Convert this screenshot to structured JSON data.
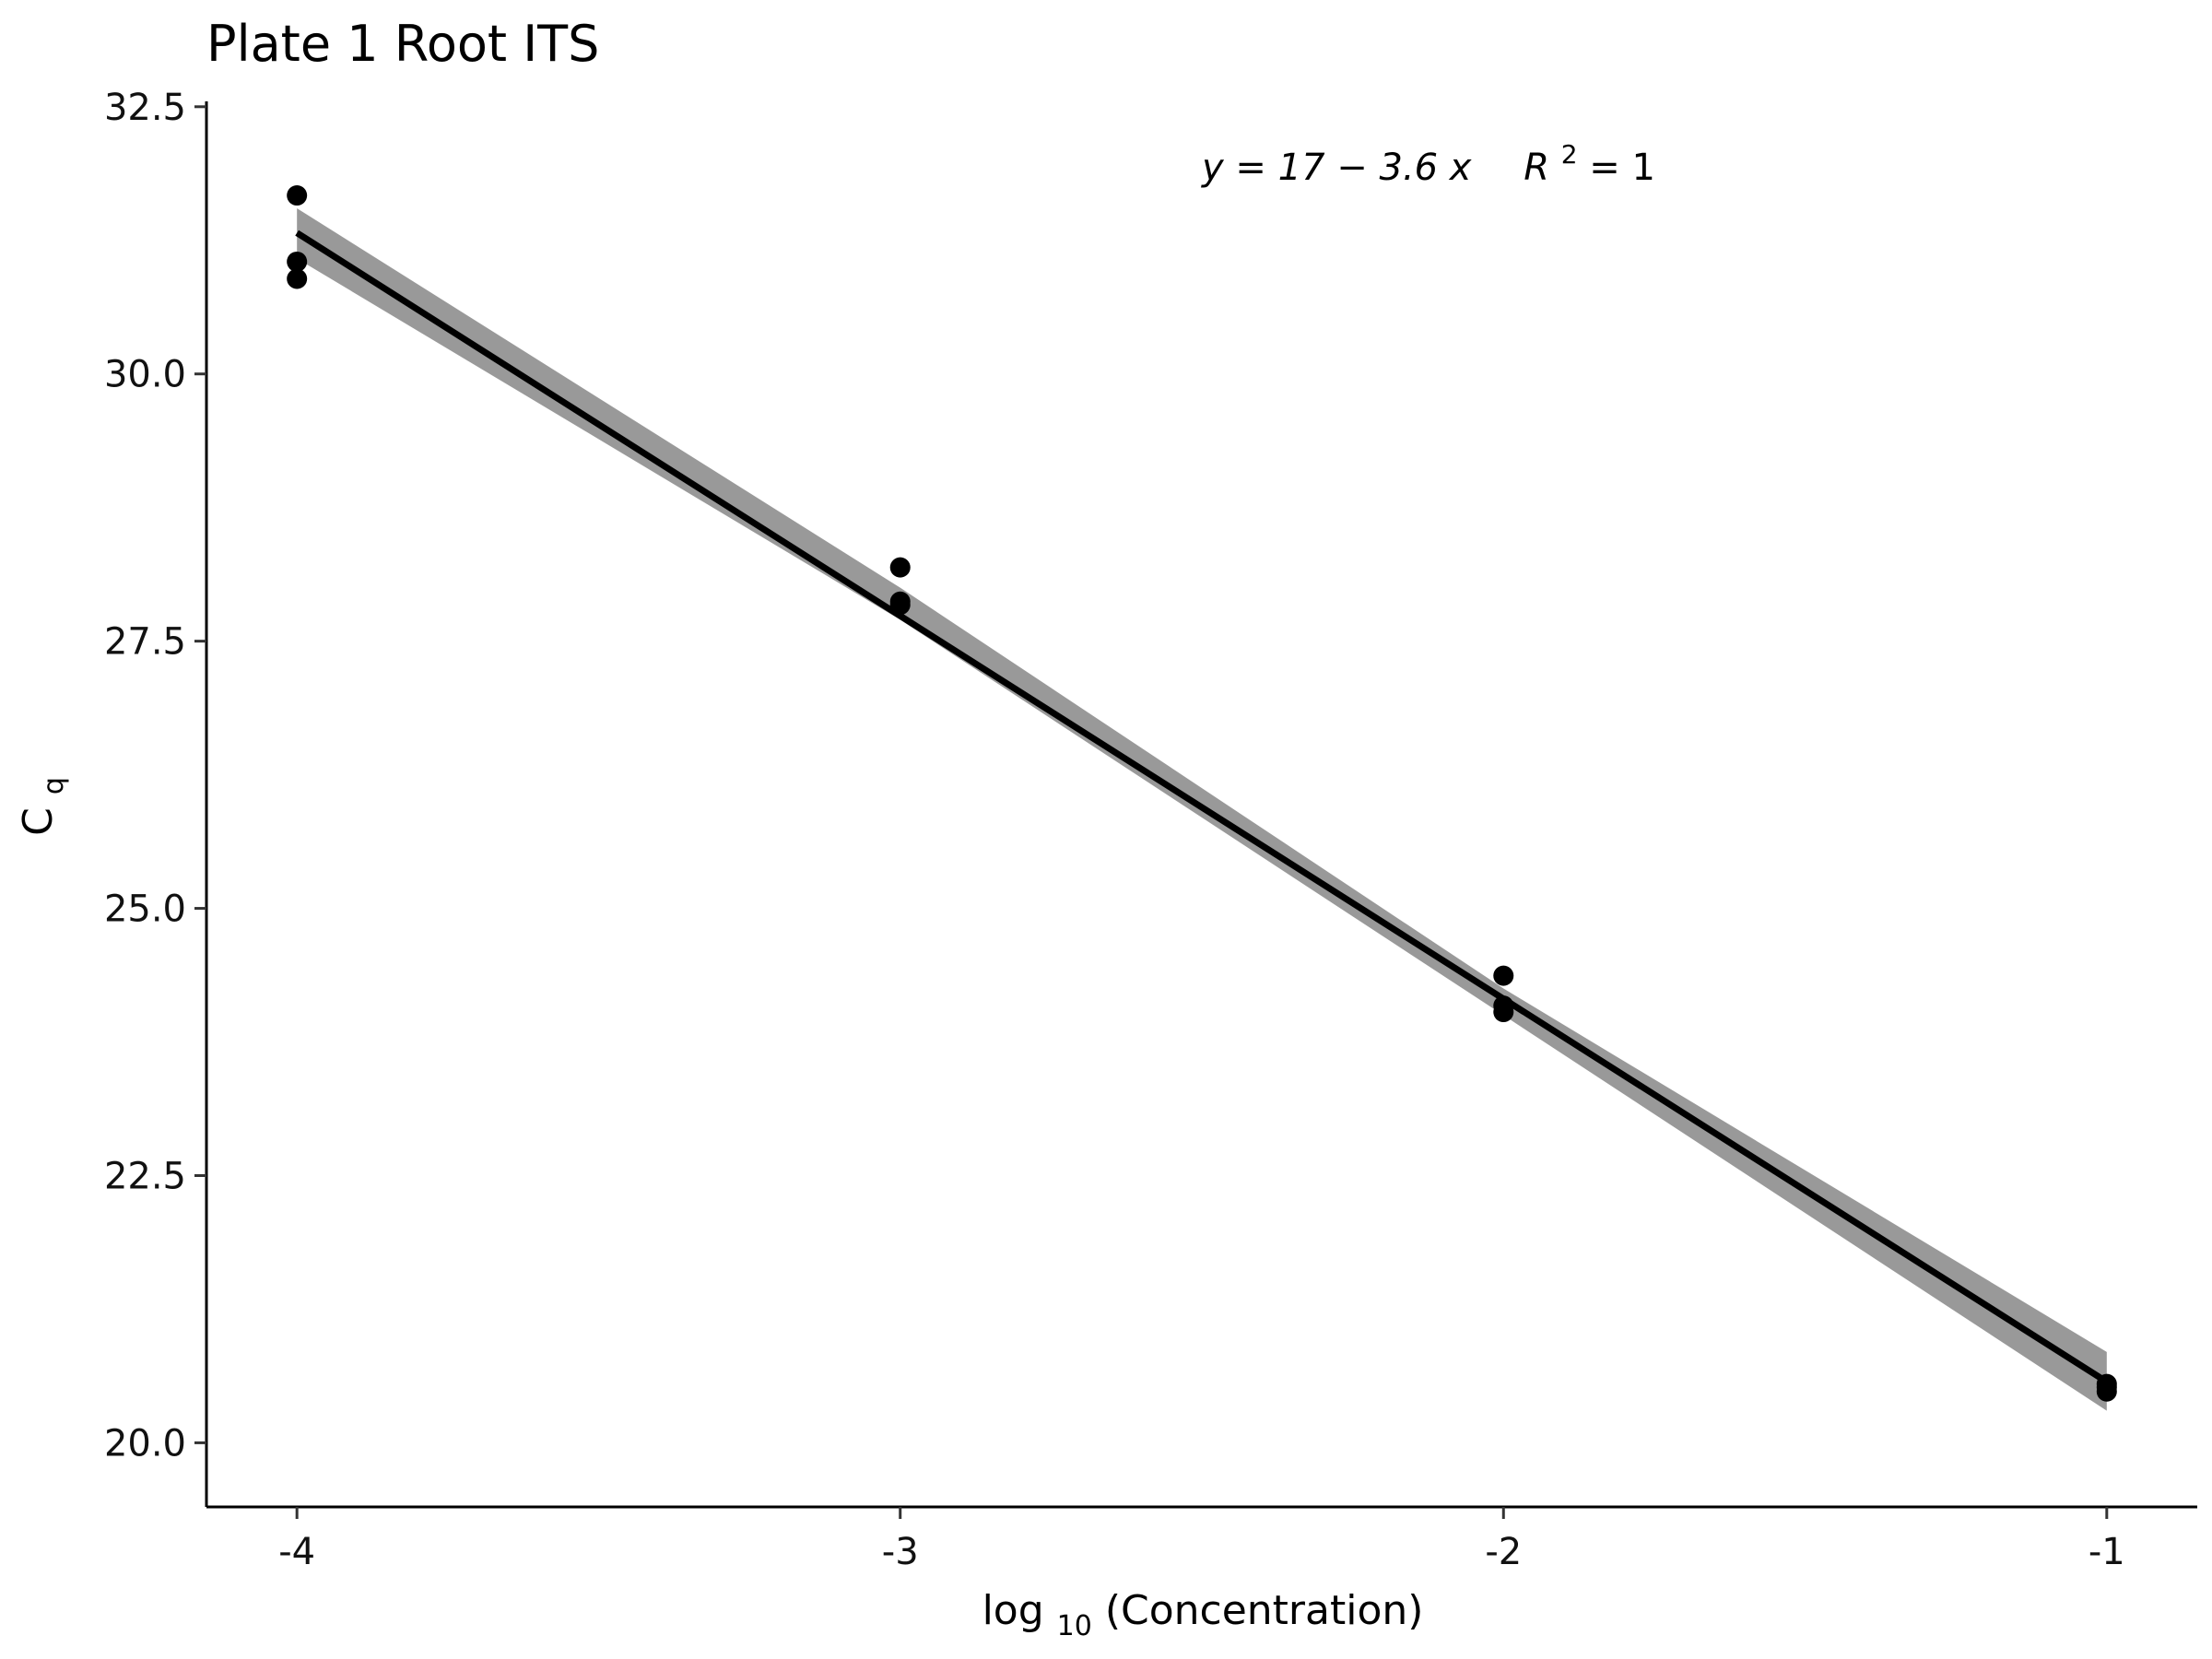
{
  "chart_data": {
    "type": "scatter",
    "title": "Plate 1 Root ITS",
    "xlabel_base": "log",
    "xlabel_sub": "10",
    "xlabel_rest": "(Concentration)",
    "ylabel_base": "C",
    "ylabel_sub": "q",
    "xlim": [
      -4.15,
      -0.85
    ],
    "ylim": [
      19.4,
      32.55
    ],
    "x_ticks": [
      -4,
      -3,
      -2,
      -1
    ],
    "x_tick_labels": [
      "-4",
      "-3",
      "-2",
      "-1"
    ],
    "y_ticks": [
      20.0,
      22.5,
      25.0,
      27.5,
      30.0,
      32.5
    ],
    "y_tick_labels": [
      "20.0",
      "22.5",
      "25.0",
      "27.5",
      "30.0",
      "32.5"
    ],
    "grid": false,
    "points": [
      {
        "x": -4,
        "y": 31.67
      },
      {
        "x": -4,
        "y": 31.05
      },
      {
        "x": -4,
        "y": 30.89
      },
      {
        "x": -3,
        "y": 28.19
      },
      {
        "x": -3,
        "y": 27.87
      },
      {
        "x": -3,
        "y": 27.84
      },
      {
        "x": -2,
        "y": 24.37
      },
      {
        "x": -2,
        "y": 24.09
      },
      {
        "x": -2,
        "y": 24.03
      },
      {
        "x": -1,
        "y": 20.55
      },
      {
        "x": -1,
        "y": 20.52
      },
      {
        "x": -1,
        "y": 20.48
      }
    ],
    "fit_line": {
      "x": [
        -4,
        -1
      ],
      "y": [
        31.32,
        20.57
      ]
    },
    "confidence_band": {
      "x": [
        -4,
        -3,
        -2,
        -1
      ],
      "upper": [
        31.55,
        28.0,
        24.25,
        20.85
      ],
      "lower": [
        31.08,
        27.7,
        24.0,
        20.3
      ]
    },
    "annotation": {
      "equation": "y = 17 − 3.6 x",
      "r2_base": "R",
      "r2_sup": "2",
      "r2_rest": " = 1"
    },
    "colors": {
      "points": "#000000",
      "line": "#000000",
      "band": "#999999",
      "axis": "#000000"
    }
  }
}
